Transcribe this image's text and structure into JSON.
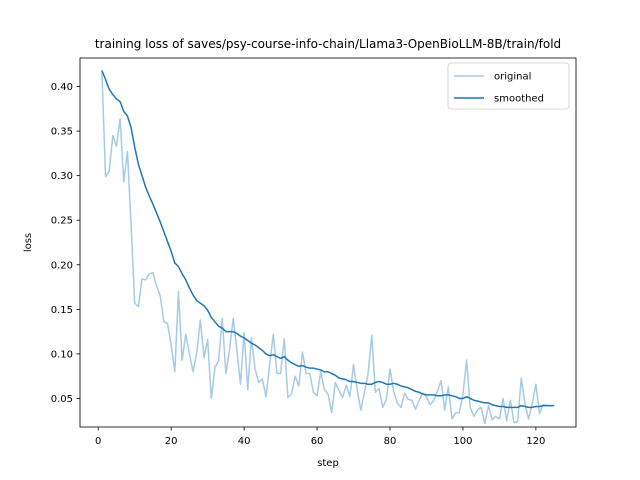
{
  "chart_data": {
    "type": "line",
    "title": "training loss of saves/psy-course-info-chain/Llama3-OpenBioLLM-8B/train/fold",
    "xlabel": "step",
    "ylabel": "loss",
    "xlim": [
      -5,
      131
    ],
    "ylim": [
      0.018,
      0.432
    ],
    "xticks": [
      0,
      20,
      40,
      60,
      80,
      100,
      120
    ],
    "yticks": [
      0.05,
      0.1,
      0.15,
      0.2,
      0.25,
      0.3,
      0.35,
      0.4
    ],
    "ytick_labels": [
      "0.05",
      "0.10",
      "0.15",
      "0.20",
      "0.25",
      "0.30",
      "0.35",
      "0.40"
    ],
    "grid": false,
    "legend_position": "top-right",
    "colors": {
      "original": "#a6cbe3",
      "smoothed": "#1f77b4",
      "axis": "#000000"
    },
    "series": [
      {
        "name": "original",
        "x": [
          1,
          2,
          3,
          4,
          5,
          6,
          7,
          8,
          9,
          10,
          11,
          12,
          13,
          14,
          15,
          16,
          17,
          18,
          19,
          20,
          21,
          22,
          23,
          24,
          25,
          26,
          27,
          28,
          29,
          30,
          31,
          32,
          33,
          34,
          35,
          36,
          37,
          38,
          39,
          40,
          41,
          42,
          43,
          44,
          45,
          46,
          47,
          48,
          49,
          50,
          51,
          52,
          53,
          54,
          55,
          56,
          57,
          58,
          59,
          60,
          61,
          62,
          63,
          64,
          65,
          66,
          67,
          68,
          69,
          70,
          71,
          72,
          73,
          74,
          75,
          76,
          77,
          78,
          79,
          80,
          81,
          82,
          83,
          84,
          85,
          86,
          87,
          88,
          89,
          90,
          91,
          92,
          93,
          94,
          95,
          96,
          97,
          98,
          99,
          100,
          101,
          102,
          103,
          104,
          105,
          106,
          107,
          108,
          109,
          110,
          111,
          112,
          113,
          114,
          115,
          116,
          117,
          118,
          119,
          120,
          121,
          122,
          123,
          124,
          125
        ],
        "y": [
          0.418,
          0.299,
          0.305,
          0.345,
          0.333,
          0.364,
          0.293,
          0.327,
          0.246,
          0.157,
          0.153,
          0.184,
          0.183,
          0.19,
          0.191,
          0.176,
          0.165,
          0.136,
          0.134,
          0.11,
          0.08,
          0.17,
          0.093,
          0.122,
          0.1,
          0.08,
          0.101,
          0.138,
          0.096,
          0.116,
          0.05,
          0.085,
          0.092,
          0.14,
          0.078,
          0.105,
          0.14,
          0.105,
          0.066,
          0.124,
          0.06,
          0.118,
          0.083,
          0.068,
          0.072,
          0.052,
          0.088,
          0.122,
          0.078,
          0.078,
          0.117,
          0.051,
          0.055,
          0.075,
          0.064,
          0.102,
          0.078,
          0.078,
          0.057,
          0.053,
          0.08,
          0.06,
          0.055,
          0.034,
          0.068,
          0.059,
          0.051,
          0.065,
          0.052,
          0.088,
          0.06,
          0.037,
          0.057,
          0.078,
          0.121,
          0.057,
          0.061,
          0.04,
          0.049,
          0.083,
          0.058,
          0.045,
          0.04,
          0.056,
          0.049,
          0.048,
          0.038,
          0.048,
          0.056,
          0.052,
          0.043,
          0.048,
          0.058,
          0.07,
          0.037,
          0.063,
          0.027,
          0.034,
          0.034,
          0.055,
          0.093,
          0.04,
          0.03,
          0.037,
          0.04,
          0.022,
          0.042,
          0.026,
          0.03,
          0.027,
          0.05,
          0.025,
          0.048,
          0.023,
          0.024,
          0.073,
          0.044,
          0.027,
          0.044,
          0.066,
          0.033,
          0.043,
          0.042,
          0.042,
          0.042
        ]
      },
      {
        "name": "smoothed",
        "x": [
          1,
          2,
          3,
          4,
          5,
          6,
          7,
          8,
          9,
          10,
          11,
          12,
          13,
          14,
          15,
          16,
          17,
          18,
          19,
          20,
          21,
          22,
          23,
          24,
          25,
          26,
          27,
          28,
          29,
          30,
          31,
          32,
          33,
          34,
          35,
          36,
          37,
          38,
          39,
          40,
          41,
          42,
          43,
          44,
          45,
          46,
          47,
          48,
          49,
          50,
          51,
          52,
          53,
          54,
          55,
          56,
          57,
          58,
          59,
          60,
          61,
          62,
          63,
          64,
          65,
          66,
          67,
          68,
          69,
          70,
          71,
          72,
          73,
          74,
          75,
          76,
          77,
          78,
          79,
          80,
          81,
          82,
          83,
          84,
          85,
          86,
          87,
          88,
          89,
          90,
          91,
          92,
          93,
          94,
          95,
          96,
          97,
          98,
          99,
          100,
          101,
          102,
          103,
          104,
          105,
          106,
          107,
          108,
          109,
          110,
          111,
          112,
          113,
          114,
          115,
          116,
          117,
          118,
          119,
          120,
          121,
          122,
          123,
          124,
          125
        ],
        "y": [
          0.418,
          0.408,
          0.397,
          0.391,
          0.386,
          0.383,
          0.372,
          0.367,
          0.354,
          0.332,
          0.313,
          0.3,
          0.287,
          0.277,
          0.268,
          0.258,
          0.248,
          0.237,
          0.226,
          0.215,
          0.202,
          0.198,
          0.19,
          0.183,
          0.174,
          0.166,
          0.16,
          0.157,
          0.154,
          0.149,
          0.141,
          0.136,
          0.131,
          0.129,
          0.125,
          0.125,
          0.125,
          0.123,
          0.12,
          0.118,
          0.115,
          0.112,
          0.11,
          0.107,
          0.104,
          0.1,
          0.098,
          0.099,
          0.097,
          0.095,
          0.097,
          0.093,
          0.09,
          0.088,
          0.086,
          0.087,
          0.085,
          0.084,
          0.084,
          0.083,
          0.082,
          0.08,
          0.08,
          0.078,
          0.076,
          0.073,
          0.072,
          0.071,
          0.069,
          0.069,
          0.068,
          0.067,
          0.067,
          0.066,
          0.066,
          0.068,
          0.069,
          0.068,
          0.066,
          0.066,
          0.067,
          0.066,
          0.064,
          0.063,
          0.062,
          0.06,
          0.058,
          0.057,
          0.055,
          0.054,
          0.054,
          0.054,
          0.053,
          0.053,
          0.054,
          0.054,
          0.053,
          0.052,
          0.05,
          0.05,
          0.052,
          0.05,
          0.048,
          0.047,
          0.046,
          0.045,
          0.045,
          0.043,
          0.042,
          0.041,
          0.041,
          0.04,
          0.04,
          0.04,
          0.04,
          0.042,
          0.041,
          0.04,
          0.04,
          0.041,
          0.041,
          0.042,
          0.042,
          0.042,
          0.042
        ]
      }
    ]
  }
}
